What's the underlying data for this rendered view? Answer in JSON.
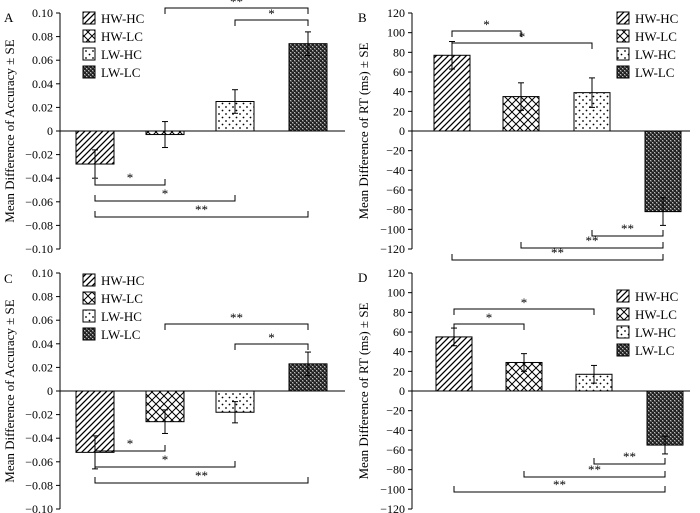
{
  "figure": {
    "patterns": {
      "HW-HC": "diag-hatch",
      "HW-LC": "cross-hatch",
      "LW-HC": "dots",
      "LW-LC": "dense-checker"
    }
  },
  "chart_data": [
    {
      "panel_label": "A",
      "type": "bar",
      "categories": [
        "HW-HC",
        "HW-LC",
        "LW-HC",
        "LW-LC"
      ],
      "values": [
        -0.028,
        -0.003,
        0.025,
        0.074
      ],
      "errors": [
        0.012,
        0.011,
        0.01,
        0.01
      ],
      "ylabel": "Mean Difference of Accuracy ± SE",
      "ylim": [
        -0.1,
        0.1
      ],
      "yticks": [
        "−0.10",
        "−0.08",
        "−0.06",
        "−0.04",
        "−0.02",
        "0",
        "0.02",
        "0.04",
        "0.06",
        "0.08",
        "0.10"
      ],
      "legend": [
        "HW-HC",
        "HW-LC",
        "LW-HC",
        "LW-LC"
      ],
      "legend_position": "top-left",
      "significance": [
        {
          "from": "HW-LC",
          "to": "LW-LC",
          "label": "**",
          "side": "top"
        },
        {
          "from": "LW-HC",
          "to": "LW-LC",
          "label": "*",
          "side": "top"
        },
        {
          "from": "HW-HC",
          "to": "HW-LC",
          "label": "*",
          "side": "bottom"
        },
        {
          "from": "HW-HC",
          "to": "LW-HC",
          "label": "*",
          "side": "bottom"
        },
        {
          "from": "HW-HC",
          "to": "LW-LC",
          "label": "**",
          "side": "bottom"
        }
      ]
    },
    {
      "panel_label": "B",
      "type": "bar",
      "categories": [
        "HW-HC",
        "HW-LC",
        "LW-HC",
        "LW-LC"
      ],
      "values": [
        77,
        35,
        39,
        -82
      ],
      "errors": [
        14,
        14,
        15,
        14
      ],
      "ylabel": "Mean Difference of RT (ms) ± SE",
      "ylim": [
        -120,
        120
      ],
      "yticks": [
        "−120",
        "−100",
        "−80",
        "−60",
        "−40",
        "−20",
        "0",
        "20",
        "40",
        "60",
        "80",
        "100",
        "120"
      ],
      "legend": [
        "HW-HC",
        "HW-LC",
        "LW-HC",
        "LW-LC"
      ],
      "legend_position": "top-right",
      "significance": [
        {
          "from": "HW-HC",
          "to": "HW-LC",
          "label": "*",
          "side": "top"
        },
        {
          "from": "HW-HC",
          "to": "LW-HC",
          "label": "*",
          "side": "top"
        },
        {
          "from": "LW-HC",
          "to": "LW-LC",
          "label": "**",
          "side": "bottom"
        },
        {
          "from": "HW-LC",
          "to": "LW-LC",
          "label": "**",
          "side": "bottom"
        },
        {
          "from": "HW-HC",
          "to": "LW-LC",
          "label": "**",
          "side": "bottom"
        }
      ]
    },
    {
      "panel_label": "C",
      "type": "bar",
      "categories": [
        "HW-HC",
        "HW-LC",
        "LW-HC",
        "LW-LC"
      ],
      "values": [
        -0.052,
        -0.026,
        -0.018,
        0.023
      ],
      "errors": [
        0.014,
        0.01,
        0.009,
        0.01
      ],
      "ylabel": "Mean Difference of Accuracy ± SE",
      "ylim": [
        -0.1,
        0.1
      ],
      "yticks": [
        "−0.10",
        "−0.08",
        "−0.06",
        "−0.04",
        "−0.02",
        "0",
        "0.02",
        "0.04",
        "0.06",
        "0.08",
        "0.10"
      ],
      "legend": [
        "HW-HC",
        "HW-LC",
        "LW-HC",
        "LW-LC"
      ],
      "legend_position": "top-left",
      "significance": [
        {
          "from": "HW-LC",
          "to": "LW-LC",
          "label": "**",
          "side": "top"
        },
        {
          "from": "LW-HC",
          "to": "LW-LC",
          "label": "*",
          "side": "top"
        },
        {
          "from": "HW-HC",
          "to": "HW-LC",
          "label": "*",
          "side": "bottom"
        },
        {
          "from": "HW-HC",
          "to": "LW-HC",
          "label": "*",
          "side": "bottom"
        },
        {
          "from": "HW-HC",
          "to": "LW-LC",
          "label": "**",
          "side": "bottom"
        }
      ]
    },
    {
      "panel_label": "D",
      "type": "bar",
      "categories": [
        "HW-HC",
        "HW-LC",
        "LW-HC",
        "LW-LC"
      ],
      "values": [
        55,
        29,
        17,
        -55
      ],
      "errors": [
        9,
        9,
        9,
        9
      ],
      "ylabel": "Mean Difference of RT (ms) ± SE",
      "ylim": [
        -120,
        120
      ],
      "yticks": [
        "−120",
        "−100",
        "−80",
        "−60",
        "−40",
        "−20",
        "0",
        "20",
        "40",
        "60",
        "80",
        "100",
        "120"
      ],
      "legend": [
        "HW-HC",
        "HW-LC",
        "LW-HC",
        "LW-LC"
      ],
      "legend_position": "top-right",
      "significance": [
        {
          "from": "HW-HC",
          "to": "HW-LC",
          "label": "*",
          "side": "top"
        },
        {
          "from": "HW-HC",
          "to": "LW-HC",
          "label": "*",
          "side": "top"
        },
        {
          "from": "LW-HC",
          "to": "LW-LC",
          "label": "**",
          "side": "bottom"
        },
        {
          "from": "HW-LC",
          "to": "LW-LC",
          "label": "**",
          "side": "bottom"
        },
        {
          "from": "HW-HC",
          "to": "LW-LC",
          "label": "**",
          "side": "bottom"
        }
      ]
    }
  ]
}
